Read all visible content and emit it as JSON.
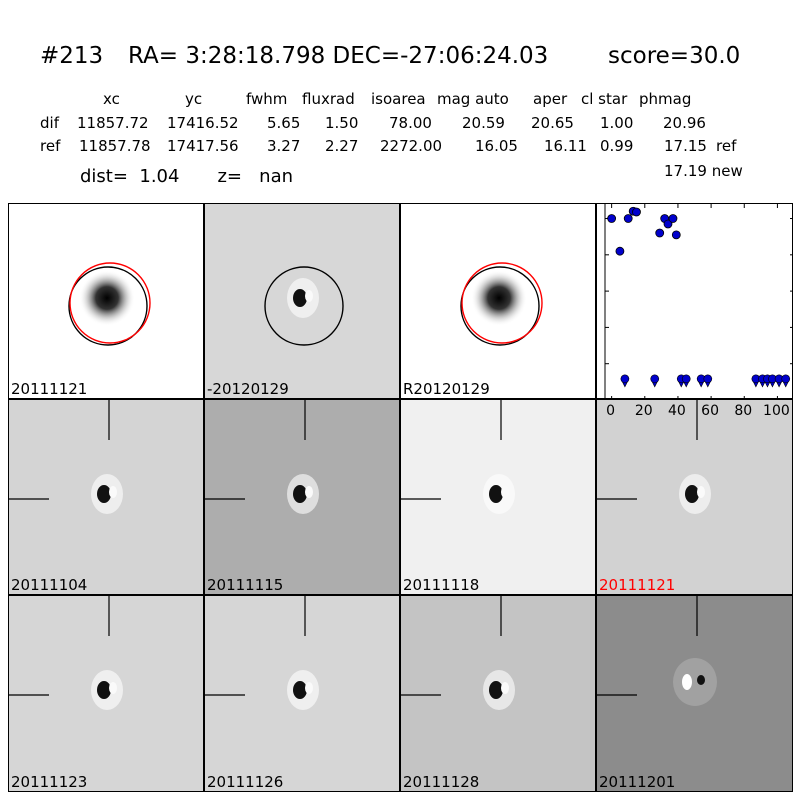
{
  "header": {
    "id": "#213",
    "radec": "RA= 3:28:18.798 DEC=-27:06:24.03",
    "score": "score=30.0"
  },
  "table": {
    "columns": [
      "xc",
      "yc",
      "fwhm",
      "fluxrad",
      "isoarea",
      "mag auto",
      "aper",
      "cl star",
      "phmag"
    ],
    "rows": [
      {
        "label": "dif",
        "values": [
          "11857.72",
          "17416.52",
          "5.65",
          "1.50",
          "78.00",
          "20.59",
          "20.65",
          "1.00",
          "20.96"
        ],
        "suffix": ""
      },
      {
        "label": "ref",
        "values": [
          "11857.78",
          "17417.56",
          "3.27",
          "2.27",
          "2272.00",
          "16.05",
          "16.11",
          "0.99",
          "17.15"
        ],
        "suffix": "ref"
      }
    ],
    "new_line": "17.19 new"
  },
  "dist": {
    "dist_text": "dist=  1.04",
    "z_text": "z=   nan"
  },
  "stamps": [
    {
      "label": "20111121",
      "kind": "dot",
      "bg": "#ffffff",
      "circles": "both"
    },
    {
      "label": "-20120129",
      "kind": "dipole",
      "bg": "#d7d7d7",
      "circles": "black"
    },
    {
      "label": "R20120129",
      "kind": "dot",
      "bg": "#ffffff",
      "circles": "both"
    },
    {
      "label": "20111104",
      "kind": "dipole",
      "bg": "#d4d4d4",
      "circles": "none"
    },
    {
      "label": "20111115",
      "kind": "dipole",
      "bg": "#adadad",
      "circles": "none"
    },
    {
      "label": "20111118",
      "kind": "dipole",
      "bg": "#f0f0f0",
      "circles": "none"
    },
    {
      "label": "20111121",
      "kind": "dipole",
      "bg": "#d2d2d2",
      "circles": "none",
      "highlight": "#ff0000"
    },
    {
      "label": "20111123",
      "kind": "dipole",
      "bg": "#d6d6d6",
      "circles": "none"
    },
    {
      "label": "20111126",
      "kind": "dipole",
      "bg": "#d6d6d6",
      "circles": "none"
    },
    {
      "label": "20111128",
      "kind": "dipole",
      "bg": "#c4c4c4",
      "circles": "none"
    },
    {
      "label": "20111201",
      "kind": "noisy",
      "bg": "#8c8c8c",
      "circles": "none"
    }
  ],
  "colors": {
    "circle_red": "#ff0000",
    "circle_black": "#000000",
    "points": "#0000cc",
    "highlight": "#ff0000"
  },
  "chart_data": {
    "type": "scatter",
    "title": "",
    "xlabel": "",
    "ylabel": "",
    "xlim": [
      -4,
      110
    ],
    "ylim": [
      26,
      20.6
    ],
    "y_inverted": true,
    "xticks": [
      0,
      20,
      40,
      60,
      80,
      100
    ],
    "yticks": [
      21,
      22,
      23,
      24,
      25,
      26
    ],
    "points": [
      {
        "x": 0,
        "y": 21.0,
        "marker": "circle"
      },
      {
        "x": 5,
        "y": 21.9,
        "marker": "circle"
      },
      {
        "x": 10,
        "y": 21.0,
        "marker": "circle"
      },
      {
        "x": 13,
        "y": 20.8,
        "marker": "circle"
      },
      {
        "x": 15,
        "y": 20.82,
        "marker": "circle"
      },
      {
        "x": 29,
        "y": 21.4,
        "marker": "circle"
      },
      {
        "x": 32,
        "y": 21.0,
        "marker": "circle"
      },
      {
        "x": 34,
        "y": 21.15,
        "marker": "circle"
      },
      {
        "x": 37,
        "y": 21.0,
        "marker": "circle"
      },
      {
        "x": 39,
        "y": 21.45,
        "marker": "circle"
      },
      {
        "x": 8,
        "y": 25.5,
        "marker": "limit"
      },
      {
        "x": 26,
        "y": 25.5,
        "marker": "limit"
      },
      {
        "x": 42,
        "y": 25.5,
        "marker": "limit"
      },
      {
        "x": 45,
        "y": 25.5,
        "marker": "limit"
      },
      {
        "x": 54,
        "y": 25.5,
        "marker": "limit"
      },
      {
        "x": 58,
        "y": 25.5,
        "marker": "limit"
      },
      {
        "x": 87,
        "y": 25.5,
        "marker": "limit"
      },
      {
        "x": 91,
        "y": 25.5,
        "marker": "limit"
      },
      {
        "x": 94,
        "y": 25.5,
        "marker": "limit"
      },
      {
        "x": 97,
        "y": 25.5,
        "marker": "limit"
      },
      {
        "x": 101,
        "y": 25.5,
        "marker": "limit"
      },
      {
        "x": 105,
        "y": 25.5,
        "marker": "limit"
      }
    ]
  }
}
